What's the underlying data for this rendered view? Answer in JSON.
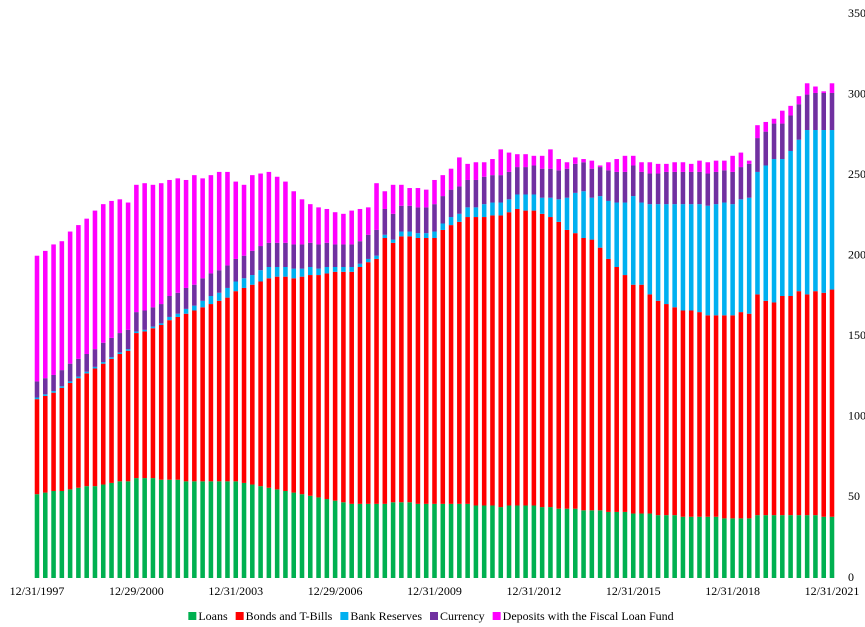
{
  "chart_data": {
    "type": "stacked_bar",
    "categories": [
      "12/31/1997",
      null,
      null,
      null,
      null,
      null,
      null,
      null,
      null,
      null,
      null,
      null,
      "12/29/2000",
      null,
      null,
      null,
      null,
      null,
      null,
      null,
      null,
      null,
      null,
      null,
      "12/31/2003",
      null,
      null,
      null,
      null,
      null,
      null,
      null,
      null,
      null,
      null,
      null,
      "12/29/2006",
      null,
      null,
      null,
      null,
      null,
      null,
      null,
      null,
      null,
      null,
      null,
      "12/31/2009",
      null,
      null,
      null,
      null,
      null,
      null,
      null,
      null,
      null,
      null,
      null,
      "12/31/2012",
      null,
      null,
      null,
      null,
      null,
      null,
      null,
      null,
      null,
      null,
      null,
      "12/31/2015",
      null,
      null,
      null,
      null,
      null,
      null,
      null,
      null,
      null,
      null,
      null,
      "12/31/2018",
      null,
      null,
      null,
      null,
      null,
      null,
      null,
      null,
      null,
      null,
      null,
      "12/31/2021"
    ],
    "series": [
      {
        "name": "Loans",
        "color": "#00b050",
        "values": [
          52,
          53,
          54,
          54,
          55,
          56,
          57,
          57,
          58,
          59,
          60,
          60,
          62,
          62,
          62,
          61,
          61,
          61,
          60,
          60,
          60,
          60,
          60,
          60,
          60,
          59,
          58,
          57,
          56,
          55,
          54,
          53,
          52,
          51,
          50,
          49,
          48,
          47,
          46,
          46,
          46,
          46,
          46,
          47,
          47,
          47,
          46,
          46,
          46,
          46,
          46,
          46,
          46,
          45,
          45,
          45,
          44,
          45,
          45,
          45,
          45,
          44,
          44,
          43,
          43,
          43,
          42,
          42,
          42,
          41,
          41,
          41,
          40,
          40,
          40,
          39,
          39,
          39,
          38,
          38,
          38,
          38,
          38,
          37,
          37,
          37,
          37,
          39,
          39,
          39,
          39,
          39,
          39,
          39,
          39,
          38,
          38
        ]
      },
      {
        "name": "Bonds and T-Bills",
        "color": "#ff0000",
        "values": [
          59,
          60,
          61,
          64,
          66,
          68,
          70,
          73,
          75,
          77,
          79,
          81,
          90,
          91,
          93,
          96,
          99,
          101,
          104,
          106,
          108,
          110,
          112,
          114,
          118,
          121,
          124,
          127,
          130,
          132,
          133,
          133,
          135,
          137,
          138,
          140,
          142,
          143,
          144,
          147,
          150,
          152,
          165,
          161,
          165,
          165,
          165,
          165,
          165,
          170,
          173,
          175,
          178,
          179,
          179,
          180,
          181,
          182,
          184,
          183,
          183,
          182,
          180,
          178,
          173,
          171,
          169,
          168,
          163,
          157,
          152,
          147,
          142,
          142,
          136,
          133,
          131,
          129,
          128,
          128,
          127,
          125,
          125,
          126,
          126,
          128,
          127,
          137,
          133,
          132,
          136,
          136,
          139,
          137,
          139,
          139,
          141
        ]
      },
      {
        "name": "Bank Reserves",
        "color": "#00b0f0",
        "values": [
          1,
          1,
          1,
          1,
          1,
          1,
          1,
          1,
          1,
          1,
          1,
          1,
          1,
          1,
          1,
          1,
          2,
          2,
          3,
          3,
          4,
          5,
          5,
          6,
          6,
          6,
          6,
          7,
          7,
          6,
          6,
          6,
          5,
          5,
          4,
          4,
          3,
          3,
          3,
          2,
          2,
          2,
          2,
          2,
          3,
          3,
          3,
          3,
          4,
          4,
          5,
          5,
          6,
          6,
          8,
          8,
          8,
          8,
          9,
          10,
          10,
          10,
          12,
          14,
          20,
          25,
          29,
          26,
          32,
          36,
          40,
          45,
          55,
          51,
          56,
          60,
          62,
          64,
          66,
          66,
          67,
          68,
          69,
          70,
          69,
          70,
          72,
          76,
          84,
          89,
          85,
          90,
          94,
          102,
          100,
          101,
          99
        ]
      },
      {
        "name": "Currency",
        "color": "#7030a0",
        "values": [
          10,
          10,
          10,
          10,
          11,
          11,
          11,
          11,
          12,
          12,
          12,
          12,
          12,
          12,
          12,
          12,
          13,
          13,
          13,
          13,
          14,
          14,
          14,
          14,
          14,
          14,
          15,
          15,
          15,
          15,
          15,
          15,
          15,
          15,
          15,
          15,
          14,
          14,
          14,
          14,
          15,
          16,
          16,
          16,
          16,
          16,
          16,
          16,
          17,
          17,
          17,
          17,
          17,
          17,
          17,
          17,
          17,
          17,
          17,
          17,
          18,
          18,
          18,
          18,
          18,
          18,
          18,
          18,
          18,
          19,
          19,
          19,
          19,
          19,
          19,
          19,
          20,
          20,
          20,
          20,
          20,
          20,
          20,
          20,
          20,
          20,
          21,
          21,
          21,
          22,
          22,
          22,
          22,
          22,
          23,
          23,
          23
        ]
      },
      {
        "name": "Deposits with the Fiscal Loan Fund",
        "color": "#ff00ff",
        "values": [
          78,
          79,
          81,
          80,
          82,
          83,
          84,
          86,
          86,
          85,
          83,
          79,
          79,
          79,
          76,
          75,
          72,
          71,
          67,
          68,
          62,
          61,
          61,
          58,
          48,
          44,
          47,
          45,
          44,
          41,
          38,
          33,
          28,
          24,
          23,
          21,
          20,
          19,
          21,
          20,
          17,
          29,
          11,
          18,
          13,
          11,
          12,
          11,
          15,
          13,
          13,
          18,
          10,
          11,
          9,
          10,
          16,
          12,
          8,
          8,
          6,
          8,
          12,
          7,
          4,
          4,
          2,
          5,
          1,
          5,
          8,
          10,
          6,
          6,
          7,
          6,
          5,
          6,
          6,
          5,
          7,
          7,
          7,
          6,
          10,
          9,
          2,
          8,
          6,
          3,
          8,
          6,
          5,
          7,
          4,
          1,
          6
        ]
      }
    ],
    "ylim": [
      0,
      350
    ],
    "yticks": [
      0,
      50,
      100,
      150,
      200,
      250,
      300,
      350
    ],
    "y_axis_side": "right",
    "legend": "bottom"
  }
}
